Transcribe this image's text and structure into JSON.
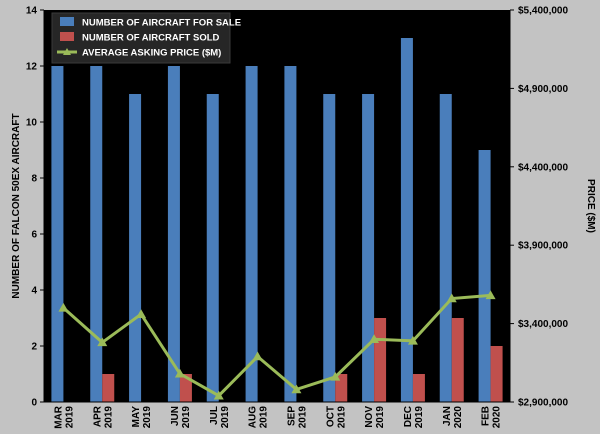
{
  "chart_data": {
    "type": "bar",
    "categories": [
      [
        "MAR",
        "2019"
      ],
      [
        "APR",
        "2019"
      ],
      [
        "MAY",
        "2019"
      ],
      [
        "JUN",
        "2019"
      ],
      [
        "JUL",
        "2019"
      ],
      [
        "AUG",
        "2019"
      ],
      [
        "SEP",
        "2019"
      ],
      [
        "OCT",
        "2019"
      ],
      [
        "NOV",
        "2019"
      ],
      [
        "DEC",
        "2019"
      ],
      [
        "JAN",
        "2020"
      ],
      [
        "FEB",
        "2020"
      ]
    ],
    "series": [
      {
        "name": "NUMBER OF AIRCRAFT FOR SALE",
        "type": "bar",
        "axis": "left",
        "color": "#4a7ebb",
        "values": [
          12,
          12,
          11,
          12,
          11,
          12,
          12,
          11,
          11,
          13,
          11,
          9
        ]
      },
      {
        "name": "NUMBER OF AIRCRAFT SOLD",
        "type": "bar",
        "axis": "left",
        "color": "#c0504d",
        "values": [
          0,
          1,
          0,
          1,
          0,
          0,
          0,
          1,
          3,
          1,
          3,
          2
        ]
      },
      {
        "name": "AVERAGE ASKING PRICE ($M)",
        "type": "line",
        "axis": "right",
        "color": "#9bbb59",
        "marker": "triangle",
        "values": [
          3500000,
          3280000,
          3460000,
          3080000,
          2940000,
          3190000,
          2980000,
          3060000,
          3300000,
          3290000,
          3560000,
          3580000
        ]
      }
    ],
    "ylabel": "NUMBER OF FALCON 50EX AIRCRAFT",
    "y2label": "PRICE ($M)",
    "ylim": [
      0,
      14
    ],
    "yticks": [
      0,
      2,
      4,
      6,
      8,
      10,
      12,
      14
    ],
    "y2lim": [
      2900000,
      5400000
    ],
    "y2ticks": [
      2900000,
      3400000,
      3900000,
      4400000,
      4900000,
      5400000
    ],
    "y2tick_labels": [
      "$2,900,000",
      "$3,400,000",
      "$3,900,000",
      "$4,400,000",
      "$4,900,000",
      "$5,400,000"
    ],
    "legend_position": "top-left",
    "grid": false,
    "plot_background": "#000000"
  }
}
